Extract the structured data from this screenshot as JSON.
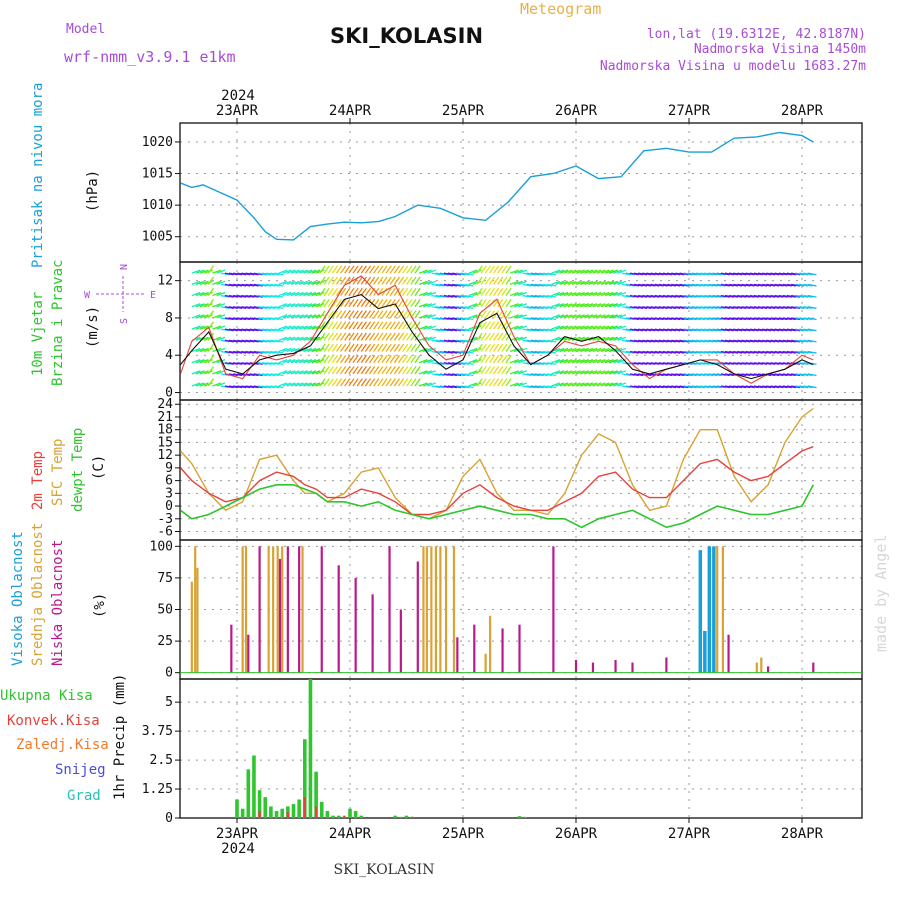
{
  "header": {
    "model_label": "Model",
    "model_name": "wrf-nmm_v3.9.1  e1km",
    "meteogram_label": "Meteogram",
    "station": "SKI_KOLASIN",
    "coords": "lon,lat (19.6312E, 42.8187N)",
    "altitude": "Nadmorska Visina 1450m",
    "model_altitude": "Nadmorska Visina u modelu 1683.27m",
    "footer_station": "SKI_KOLASIN",
    "watermark": "made by Angel"
  },
  "colors": {
    "pressure": "#1a9fd8",
    "wind_label": "#2fbf2f",
    "temp_2m": "#e8413b",
    "temp_sfc": "#d9a232",
    "temp_dew": "#2ec52e",
    "cloud_high": "#1a9fd8",
    "cloud_mid": "#d9a232",
    "cloud_low": "#b81a8c",
    "precip_total": "#2ec52e",
    "precip_conv": "#e8413b",
    "precip_frozen": "#f07a2a",
    "snow": "#4b4bd8",
    "hail": "#29c2b8",
    "compass": "#a84cd6"
  },
  "time_axis": {
    "top_year": "2024",
    "bottom_year": "2024",
    "dates": [
      "23APR",
      "24APR",
      "25APR",
      "26APR",
      "27APR",
      "28APR"
    ]
  },
  "compass": {
    "n": "N",
    "s": "S",
    "w": "W",
    "e": "E"
  },
  "chart_data": [
    {
      "type": "line",
      "panel": "pressure",
      "ylabel": [
        "Pritisak na nivou mora",
        "(hPa)"
      ],
      "yticks": [
        1005,
        1010,
        1015,
        1020
      ],
      "ylim": [
        1001,
        1023
      ],
      "x_days": [
        0,
        0.1,
        0.2,
        0.35,
        0.5,
        0.65,
        0.75,
        0.85,
        1.0,
        1.15,
        1.3,
        1.45,
        1.6,
        1.75,
        1.9,
        2.1,
        2.3,
        2.5,
        2.7,
        2.9,
        3.1,
        3.3,
        3.5,
        3.7,
        3.9,
        4.1,
        4.3,
        4.5,
        4.7,
        4.9,
        5.1,
        5.3,
        5.5,
        5.6
      ],
      "series": [
        {
          "values": [
            1013.5,
            1012.8,
            1013.2,
            1012.0,
            1010.8,
            1008.0,
            1005.8,
            1004.6,
            1004.5,
            1006.6,
            1007.0,
            1007.3,
            1007.2,
            1007.4,
            1008.2,
            1010.0,
            1009.5,
            1008.0,
            1007.6,
            1010.5,
            1014.5,
            1015.0,
            1016.2,
            1014.2,
            1014.5,
            1018.6,
            1019.0,
            1018.4,
            1018.4,
            1020.6,
            1020.8,
            1021.5,
            1021.0,
            1020.0
          ]
        }
      ]
    },
    {
      "type": "line",
      "panel": "wind",
      "ylabel": [
        "10m Vjetar",
        "Brzina i Pravac",
        "(m/s)"
      ],
      "yticks": [
        0,
        4,
        8,
        12
      ],
      "ylim": [
        -0.8,
        14
      ],
      "x_days": [
        0,
        0.1,
        0.25,
        0.4,
        0.55,
        0.7,
        0.85,
        1.0,
        1.15,
        1.3,
        1.45,
        1.6,
        1.75,
        1.9,
        2.05,
        2.2,
        2.35,
        2.5,
        2.65,
        2.8,
        2.95,
        3.1,
        3.25,
        3.4,
        3.55,
        3.7,
        3.85,
        4.0,
        4.15,
        4.3,
        4.45,
        4.6,
        4.75,
        4.9,
        5.05,
        5.2,
        5.35,
        5.5,
        5.6
      ],
      "series": [
        {
          "name_hidden": "speed",
          "values": [
            3.0,
            4.5,
            6.5,
            2.5,
            2.0,
            3.5,
            4.0,
            4.2,
            5.0,
            7.5,
            10.0,
            10.5,
            9.0,
            9.5,
            6.5,
            4.0,
            2.5,
            3.5,
            7.5,
            8.5,
            5.0,
            3.0,
            4.0,
            6.0,
            5.5,
            6.0,
            4.5,
            2.5,
            2.0,
            2.5,
            3.0,
            3.5,
            3.0,
            2.0,
            1.5,
            2.0,
            2.5,
            3.5,
            3.0
          ]
        },
        {
          "name_hidden": "gust",
          "values": [
            2.0,
            5.5,
            7.0,
            2.0,
            1.5,
            4.0,
            3.5,
            4.0,
            5.5,
            8.5,
            11.5,
            12.5,
            10.5,
            11.5,
            8.0,
            5.0,
            3.5,
            4.0,
            8.5,
            10.0,
            6.0,
            3.0,
            4.0,
            5.5,
            5.0,
            5.5,
            5.0,
            3.0,
            1.5,
            2.5,
            3.0,
            3.5,
            3.5,
            2.0,
            1.0,
            2.0,
            2.5,
            4.0,
            3.5
          ]
        }
      ],
      "barb_days_start": 0.1,
      "barb_days_end": 5.55,
      "barb_levels": [
        0.7,
        2.0,
        3.2,
        4.4,
        5.6,
        6.8,
        8.0,
        9.2,
        10.4,
        11.6,
        12.8
      ]
    },
    {
      "type": "line",
      "panel": "temperature",
      "ylabel": [
        "2m Temp",
        "SFC Temp",
        "dewpt Temp",
        "(C)"
      ],
      "yticks": [
        -6,
        -3,
        0,
        3,
        6,
        9,
        12,
        15,
        18,
        21,
        24
      ],
      "ylim": [
        -8,
        25
      ],
      "x_days": [
        0,
        0.1,
        0.25,
        0.4,
        0.55,
        0.7,
        0.85,
        1.0,
        1.1,
        1.2,
        1.3,
        1.45,
        1.6,
        1.75,
        1.9,
        2.05,
        2.2,
        2.35,
        2.5,
        2.65,
        2.8,
        2.95,
        3.1,
        3.25,
        3.4,
        3.55,
        3.7,
        3.85,
        4.0,
        4.15,
        4.3,
        4.45,
        4.6,
        4.75,
        4.9,
        5.05,
        5.2,
        5.35,
        5.5,
        5.6
      ],
      "series": [
        {
          "name": "2m Temp",
          "values": [
            9,
            6,
            3,
            1,
            2,
            6,
            8,
            7,
            5,
            4,
            2,
            2,
            4,
            3,
            1,
            -2,
            -2,
            -1,
            3,
            5,
            2,
            0,
            -1,
            -1,
            1,
            3,
            7,
            8,
            4,
            2,
            2,
            6,
            10,
            11,
            8,
            6,
            7,
            10,
            13,
            14
          ]
        },
        {
          "name": "SFC Temp",
          "values": [
            13,
            10,
            3,
            -1,
            1,
            11,
            12,
            6,
            3,
            3,
            1,
            3,
            8,
            9,
            2,
            -2,
            -3,
            -1,
            7,
            11,
            3,
            -1,
            -1,
            -2,
            3,
            12,
            17,
            15,
            5,
            -1,
            0,
            11,
            18,
            18,
            7,
            1,
            5,
            15,
            21,
            23
          ]
        },
        {
          "name": "dewpt Temp",
          "values": [
            -1,
            -3,
            -2,
            0,
            2,
            4,
            5,
            5,
            4,
            3,
            1,
            1,
            0,
            1,
            -1,
            -2,
            -3,
            -2,
            -1,
            0,
            -1,
            -2,
            -2,
            -3,
            -3,
            -5,
            -3,
            -2,
            -1,
            -3,
            -5,
            -4,
            -2,
            0,
            -1,
            -2,
            -2,
            -1,
            0,
            5
          ]
        }
      ]
    },
    {
      "type": "bar",
      "panel": "clouds",
      "ylabel": [
        "Visoka Oblacnost",
        "Srednja Oblacnost",
        "Niska Oblacnost",
        "(%)"
      ],
      "yticks": [
        0,
        25,
        50,
        75,
        100
      ],
      "ylim": [
        -5,
        105
      ],
      "series": [
        {
          "name": "Visoka Oblacnost",
          "x_days": [
            4.6,
            4.64,
            4.68,
            4.72
          ],
          "values": [
            97,
            33,
            100,
            100
          ]
        },
        {
          "name": "Srednja Oblacnost",
          "x_days": [
            0.1,
            0.13,
            0.15,
            0.55,
            0.58,
            0.78,
            0.82,
            0.86,
            0.9,
            1.08,
            2.15,
            2.18,
            2.22,
            2.26,
            2.3,
            2.35,
            2.42,
            2.7,
            2.74,
            4.75,
            4.8,
            5.1,
            5.14
          ],
          "values": [
            72,
            100,
            83,
            100,
            100,
            100,
            100,
            100,
            100,
            100,
            100,
            100,
            100,
            100,
            100,
            100,
            100,
            15,
            45,
            100,
            100,
            8,
            12
          ]
        },
        {
          "name": "Niska Oblacnost",
          "x_days": [
            0.45,
            0.6,
            0.7,
            0.88,
            0.95,
            1.05,
            1.25,
            1.4,
            1.55,
            1.7,
            1.85,
            1.95,
            2.1,
            2.45,
            2.6,
            2.85,
            3.0,
            3.3,
            3.5,
            3.65,
            3.85,
            4.0,
            4.3,
            4.85,
            5.2,
            5.6
          ],
          "values": [
            38,
            30,
            100,
            90,
            100,
            100,
            100,
            85,
            75,
            62,
            100,
            50,
            88,
            28,
            38,
            35,
            38,
            100,
            10,
            8,
            10,
            8,
            12,
            30,
            5,
            8
          ]
        }
      ]
    },
    {
      "type": "bar",
      "panel": "precip",
      "ylabel": [
        "1hr Precip (mm)"
      ],
      "yticks": [
        0,
        1.25,
        2.5,
        3.75,
        5
      ],
      "ytick_labels": [
        "0",
        "1.25",
        "2.5",
        "3.75",
        "5"
      ],
      "ylim": [
        0,
        6
      ],
      "legend": [
        "Ukupna Kisa",
        "Konvek.Kisa",
        "Zaledj.Kisa",
        "Snijeg",
        "Grad"
      ],
      "series": [
        {
          "name": "Ukupna Kisa",
          "x_days": [
            0.5,
            0.55,
            0.6,
            0.65,
            0.7,
            0.75,
            0.8,
            0.85,
            0.9,
            0.95,
            1.0,
            1.05,
            1.1,
            1.15,
            1.2,
            1.25,
            1.3,
            1.35,
            1.4,
            1.45,
            1.5,
            1.55,
            1.6,
            1.9,
            1.95,
            2.0,
            2.05,
            3.0,
            3.05
          ],
          "values": [
            0.8,
            0.4,
            2.1,
            2.7,
            1.2,
            0.9,
            0.5,
            0.3,
            0.4,
            0.5,
            0.6,
            0.8,
            3.4,
            6.0,
            2.0,
            0.7,
            0.3,
            0.1,
            0.1,
            0.05,
            0.4,
            0.3,
            0.1,
            0.1,
            0.05,
            0.1,
            0.05,
            0.08,
            0.05
          ]
        },
        {
          "name": "Konvek.Kisa",
          "x_days": [
            0.7,
            0.95,
            1.1,
            1.2,
            1.45,
            2.05
          ],
          "values": [
            0.3,
            0.25,
            0.9,
            0.5,
            0.1,
            0.05
          ]
        }
      ]
    }
  ]
}
